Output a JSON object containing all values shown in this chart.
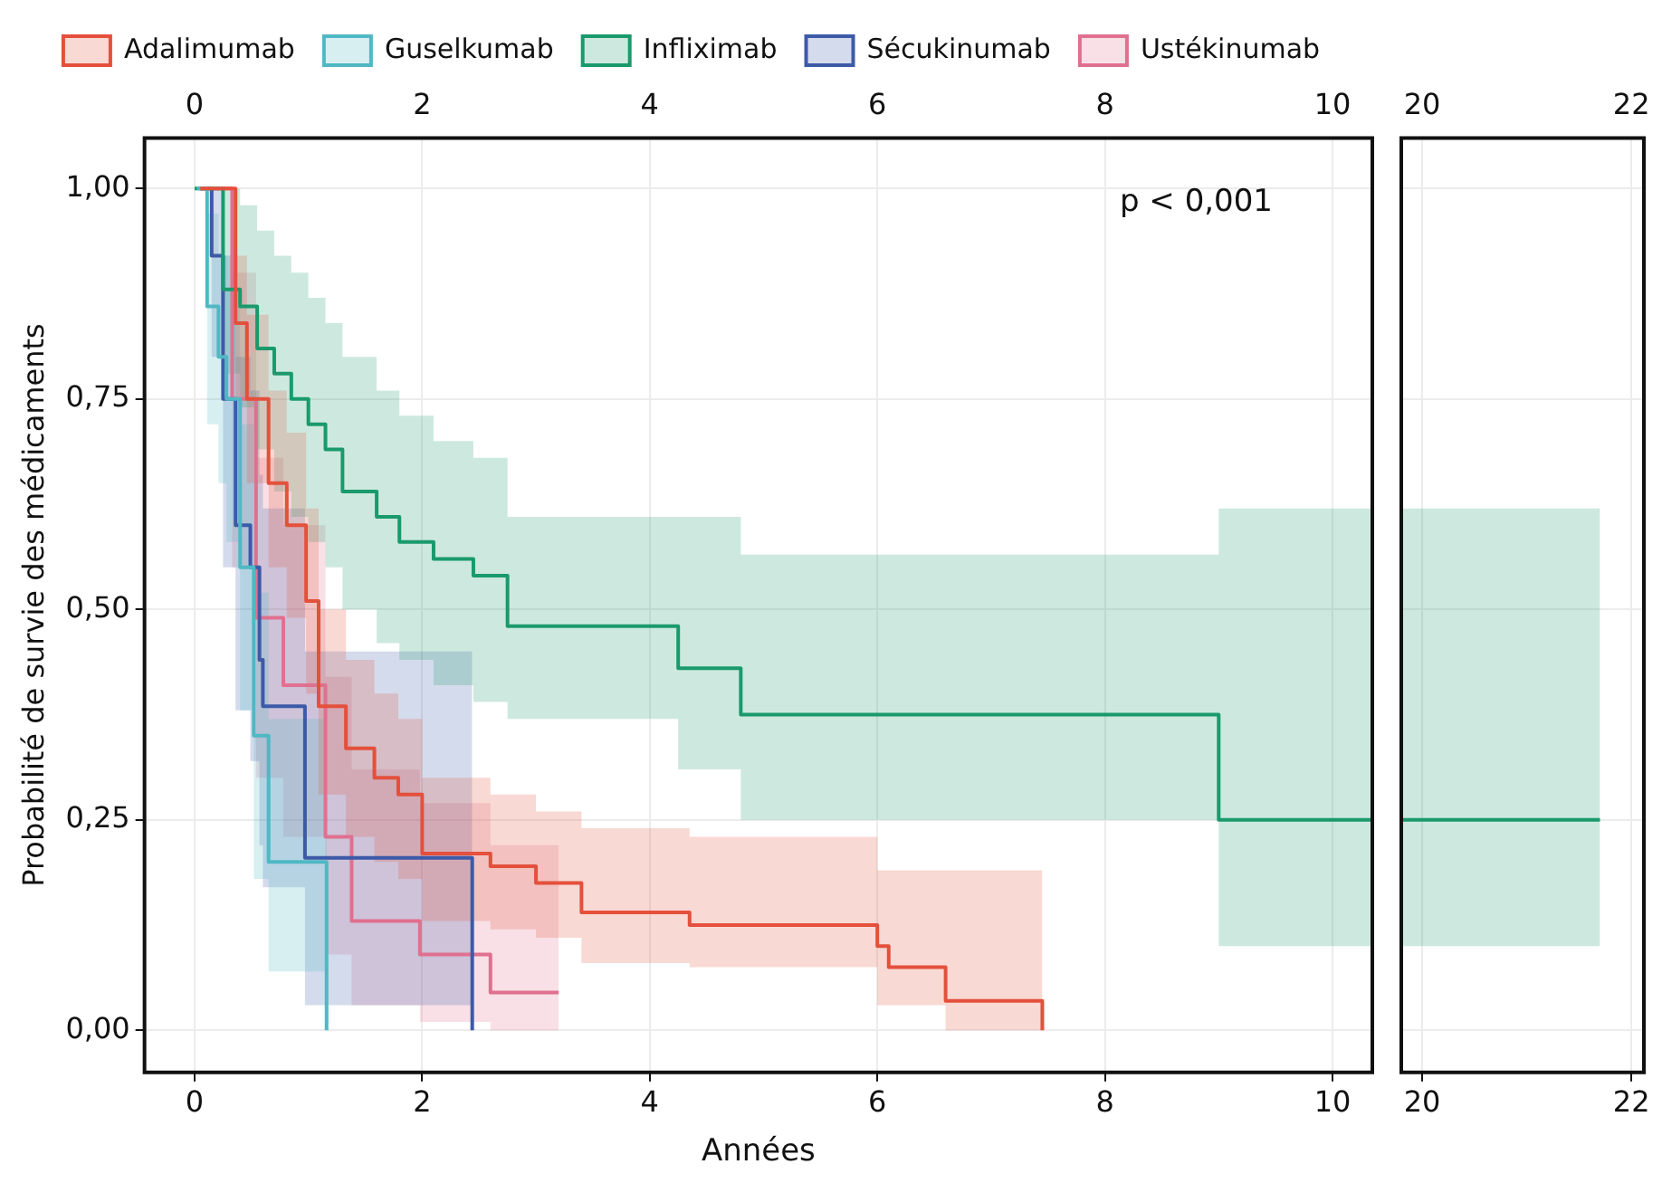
{
  "chart_data": [
    {
      "type": "step",
      "xlabel": "Années",
      "ylabel": "Probabilité de survie des médicaments",
      "legend": "top",
      "grid": true,
      "marker": "none",
      "annotations": [
        "p < 0,001"
      ],
      "xlim": [
        -0.44,
        10.35
      ],
      "xticks": [
        0,
        2,
        4,
        6,
        8,
        10
      ],
      "x2lim": [
        -0.44,
        10.35
      ],
      "x2ticks": [
        0,
        2,
        4,
        6,
        8,
        10
      ],
      "ylim": [
        -0.05,
        1.06
      ],
      "yticks": [
        {
          "value": 0,
          "label": "0,00"
        },
        {
          "value": 0.25,
          "label": "0,25"
        },
        {
          "value": 0.5,
          "label": "0,50"
        },
        {
          "value": 0.75,
          "label": "0,75"
        },
        {
          "value": 1,
          "label": "1,00"
        }
      ],
      "series": [
        {
          "name": "Adalimumab",
          "color": "#e4503c",
          "x": [
            0.05,
            0.36,
            0.46,
            0.65,
            0.81,
            0.98,
            1.09,
            1.33,
            1.58,
            1.79,
            2.0,
            2.6,
            3.0,
            3.4,
            4.35,
            6.0,
            6.1,
            6.6,
            7.45
          ],
          "values": [
            1.0,
            0.84,
            0.75,
            0.65,
            0.6,
            0.51,
            0.385,
            0.335,
            0.3,
            0.28,
            0.21,
            0.195,
            0.175,
            0.14,
            0.125,
            0.1,
            0.075,
            0.035,
            0.0
          ],
          "upper": [
            1.0,
            0.92,
            0.85,
            0.76,
            0.71,
            0.62,
            0.5,
            0.44,
            0.4,
            0.37,
            0.3,
            0.28,
            0.26,
            0.24,
            0.23,
            0.19,
            0.19,
            0.19,
            0.19
          ],
          "lower": [
            1.0,
            0.75,
            0.65,
            0.55,
            0.49,
            0.4,
            0.28,
            0.23,
            0.2,
            0.18,
            0.13,
            0.12,
            0.11,
            0.08,
            0.075,
            0.03,
            0.03,
            0.0,
            0.0
          ]
        },
        {
          "name": "Guselkumab",
          "color": "#4fb8c4",
          "x": [
            0.02,
            0.11,
            0.21,
            0.28,
            0.4,
            0.52,
            0.65,
            1.16
          ],
          "values": [
            1.0,
            0.86,
            0.8,
            0.75,
            0.55,
            0.35,
            0.2,
            0.0
          ],
          "upper": [
            1.0,
            0.97,
            0.92,
            0.88,
            0.72,
            0.52,
            0.37,
            0.37
          ],
          "lower": [
            1.0,
            0.72,
            0.65,
            0.58,
            0.38,
            0.18,
            0.07,
            0.07
          ]
        },
        {
          "name": "Infliximab",
          "color": "#1a9a6c",
          "x": [
            0,
            0.25,
            0.4,
            0.55,
            0.7,
            0.85,
            1.0,
            1.15,
            1.3,
            1.6,
            1.8,
            2.1,
            2.45,
            2.75,
            4.25,
            4.8,
            9.0,
            10.35
          ],
          "values": [
            1.0,
            0.88,
            0.86,
            0.81,
            0.78,
            0.75,
            0.72,
            0.69,
            0.64,
            0.61,
            0.58,
            0.56,
            0.54,
            0.48,
            0.43,
            0.375,
            0.25,
            0.25
          ],
          "upper": [
            1.0,
            1.0,
            0.98,
            0.95,
            0.92,
            0.9,
            0.87,
            0.84,
            0.8,
            0.76,
            0.73,
            0.7,
            0.68,
            0.61,
            0.61,
            0.565,
            0.62,
            0.62
          ],
          "lower": [
            1.0,
            0.78,
            0.74,
            0.69,
            0.64,
            0.61,
            0.58,
            0.55,
            0.5,
            0.46,
            0.44,
            0.41,
            0.39,
            0.37,
            0.31,
            0.25,
            0.1,
            0.1
          ]
        },
        {
          "name": "Sécukinumab",
          "color": "#3d5aa8",
          "x": [
            0.05,
            0.15,
            0.25,
            0.36,
            0.49,
            0.57,
            0.6,
            0.97,
            2.44
          ],
          "values": [
            1.0,
            0.92,
            0.75,
            0.6,
            0.55,
            0.44,
            0.385,
            0.205,
            0.0
          ],
          "upper": [
            1.0,
            1.0,
            0.92,
            0.8,
            0.76,
            0.66,
            0.62,
            0.45,
            0.45
          ],
          "lower": [
            1.0,
            0.8,
            0.55,
            0.38,
            0.32,
            0.22,
            0.17,
            0.03,
            0.0
          ]
        },
        {
          "name": "Ustékinumab",
          "color": "#e0708f",
          "x": [
            0.05,
            0.33,
            0.54,
            0.78,
            1.15,
            1.38,
            1.98,
            2.6,
            3.2
          ],
          "values": [
            1.0,
            0.75,
            0.49,
            0.41,
            0.23,
            0.13,
            0.09,
            0.045,
            0.045
          ],
          "upper": [
            1.0,
            0.9,
            0.68,
            0.6,
            0.42,
            0.31,
            0.27,
            0.22,
            0.22
          ],
          "lower": [
            1.0,
            0.55,
            0.3,
            0.23,
            0.09,
            0.03,
            0.01,
            0.0,
            0.0
          ]
        }
      ]
    },
    {
      "type": "step",
      "grid": true,
      "marker": "none",
      "tick_labels": "x",
      "xlim": [
        19.8,
        22.12
      ],
      "xticks": [
        20,
        22
      ],
      "x2lim": [
        19.8,
        22.12
      ],
      "x2ticks": [
        20,
        22
      ],
      "ylim": [
        -0.05,
        1.06
      ],
      "yticks": [
        0,
        0.25,
        0.5,
        0.75,
        1
      ],
      "series": [
        {
          "color": "#1a9a6c",
          "x": [
            19.8,
            21.7
          ],
          "values": [
            0.25,
            0.25
          ],
          "upper": [
            0.62,
            0.62
          ],
          "lower": [
            0.1,
            0.1
          ]
        }
      ]
    }
  ]
}
